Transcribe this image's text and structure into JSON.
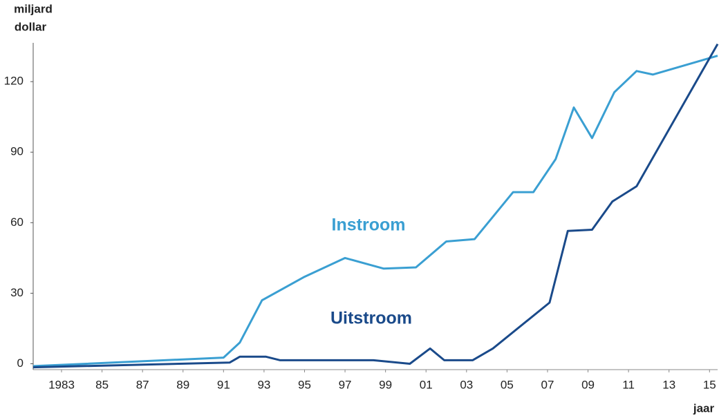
{
  "chart_data": {
    "type": "line",
    "y_title_lines": [
      "miljard",
      "dollar"
    ],
    "x_title": "jaar",
    "xlim": [
      1981.6,
      2015.4
    ],
    "ylim": [
      -2.5,
      136.5
    ],
    "xticks": [
      {
        "value": 1983,
        "label": "1983"
      },
      {
        "value": 1985,
        "label": "85"
      },
      {
        "value": 1987,
        "label": "87"
      },
      {
        "value": 1989,
        "label": "89"
      },
      {
        "value": 1991,
        "label": "91"
      },
      {
        "value": 1993,
        "label": "93"
      },
      {
        "value": 1995,
        "label": "95"
      },
      {
        "value": 1997,
        "label": "97"
      },
      {
        "value": 1999,
        "label": "99"
      },
      {
        "value": 2001,
        "label": "01"
      },
      {
        "value": 2003,
        "label": "03"
      },
      {
        "value": 2005,
        "label": "05"
      },
      {
        "value": 2007,
        "label": "07"
      },
      {
        "value": 2009,
        "label": "09"
      },
      {
        "value": 2011,
        "label": "11"
      },
      {
        "value": 2013,
        "label": "13"
      },
      {
        "value": 2015,
        "label": "15"
      }
    ],
    "yticks": [
      0,
      30,
      60,
      90,
      120
    ],
    "grid": false,
    "series": [
      {
        "name": "Instroom",
        "color": "#3a9fd2",
        "x": [
          1981.6,
          1991.0,
          1991.8,
          1992.9,
          1995.0,
          1997.0,
          1998.9,
          2000.5,
          2002.0,
          2003.4,
          2005.3,
          2006.3,
          2007.4,
          2008.3,
          2009.2,
          2010.3,
          2011.4,
          2012.2,
          2015.4
        ],
        "values": [
          -1,
          2.6,
          9,
          27,
          37,
          45,
          40.5,
          41,
          52,
          53,
          73,
          73,
          87,
          109,
          96,
          115.5,
          124.5,
          123,
          131
        ]
      },
      {
        "name": "Uitstroom",
        "color": "#1a4a8a",
        "x": [
          1981.6,
          1991.3,
          1991.8,
          1993.1,
          1993.8,
          1998.4,
          2000.2,
          2001.2,
          2001.9,
          2003.3,
          2004.3,
          2007.1,
          2008.0,
          2009.2,
          2010.2,
          2011.4,
          2015.4
        ],
        "values": [
          -1.5,
          0.5,
          3,
          3,
          1.5,
          1.5,
          0,
          6.5,
          1.5,
          1.5,
          6.5,
          26,
          56.5,
          57,
          69,
          75.5,
          136
        ]
      }
    ]
  }
}
